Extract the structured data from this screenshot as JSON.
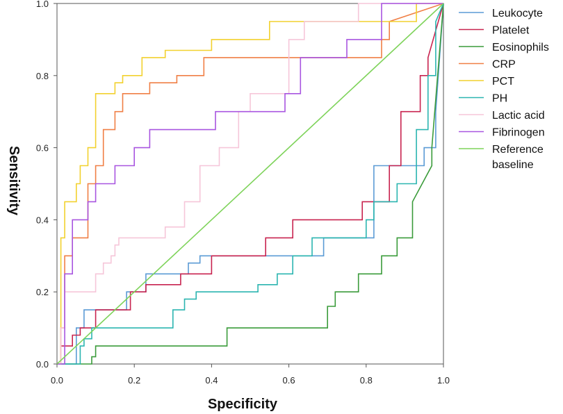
{
  "chart_data": {
    "type": "line",
    "title": "",
    "xlabel": "Specificity",
    "ylabel": "Sensitivity",
    "xlim": [
      0,
      1
    ],
    "ylim": [
      0,
      1
    ],
    "xticks": [
      "0.0",
      "0.2",
      "0.4",
      "0.6",
      "0.8",
      "1.0"
    ],
    "yticks": [
      "0.0",
      "0.2",
      "0.4",
      "0.6",
      "0.8",
      "1.0"
    ],
    "legend_position": "right",
    "grid": false,
    "series": [
      {
        "name": "Leukocyte",
        "color": "#5b9bd5",
        "x": [
          0,
          0.05,
          0.05,
          0.07,
          0.07,
          0.18,
          0.18,
          0.23,
          0.23,
          0.34,
          0.34,
          0.37,
          0.37,
          0.69,
          0.69,
          0.82,
          0.82,
          0.87,
          0.87,
          0.95,
          0.95,
          0.98,
          0.98,
          1.0
        ],
        "y": [
          0,
          0,
          0.1,
          0.1,
          0.15,
          0.15,
          0.2,
          0.2,
          0.25,
          0.25,
          0.28,
          0.28,
          0.3,
          0.3,
          0.35,
          0.35,
          0.55,
          0.55,
          0.55,
          0.55,
          0.6,
          0.6,
          0.7,
          1.0
        ]
      },
      {
        "name": "Platelet",
        "color": "#c8234f",
        "x": [
          0,
          0.01,
          0.01,
          0.04,
          0.04,
          0.06,
          0.06,
          0.1,
          0.1,
          0.19,
          0.19,
          0.23,
          0.23,
          0.32,
          0.32,
          0.4,
          0.4,
          0.54,
          0.54,
          0.61,
          0.61,
          0.79,
          0.79,
          0.86,
          0.86,
          0.89,
          0.89,
          0.94,
          0.94,
          0.96,
          0.96,
          1.0
        ],
        "y": [
          0,
          0,
          0.05,
          0.05,
          0.08,
          0.08,
          0.1,
          0.1,
          0.15,
          0.15,
          0.2,
          0.2,
          0.22,
          0.22,
          0.25,
          0.25,
          0.3,
          0.3,
          0.35,
          0.35,
          0.4,
          0.4,
          0.45,
          0.45,
          0.55,
          0.55,
          0.7,
          0.7,
          0.8,
          0.8,
          0.85,
          1.0
        ]
      },
      {
        "name": "Eosinophils",
        "color": "#3a9b3a",
        "x": [
          0,
          0.09,
          0.09,
          0.1,
          0.1,
          0.44,
          0.44,
          0.7,
          0.7,
          0.72,
          0.72,
          0.78,
          0.78,
          0.84,
          0.84,
          0.88,
          0.88,
          0.92,
          0.92,
          0.97,
          0.97,
          1.0
        ],
        "y": [
          0,
          0,
          0.02,
          0.02,
          0.05,
          0.05,
          0.1,
          0.1,
          0.16,
          0.16,
          0.2,
          0.2,
          0.25,
          0.25,
          0.3,
          0.3,
          0.35,
          0.35,
          0.45,
          0.55,
          0.6,
          1.0
        ]
      },
      {
        "name": "CRP",
        "color": "#f07f45",
        "x": [
          0,
          0.01,
          0.01,
          0.02,
          0.02,
          0.04,
          0.04,
          0.08,
          0.08,
          0.1,
          0.1,
          0.12,
          0.12,
          0.15,
          0.15,
          0.17,
          0.17,
          0.24,
          0.24,
          0.31,
          0.31,
          0.38,
          0.38,
          0.84,
          0.84,
          0.86,
          0.86,
          1.0
        ],
        "y": [
          0,
          0,
          0.1,
          0.1,
          0.3,
          0.3,
          0.35,
          0.35,
          0.5,
          0.5,
          0.55,
          0.55,
          0.65,
          0.65,
          0.7,
          0.7,
          0.75,
          0.75,
          0.78,
          0.78,
          0.8,
          0.8,
          0.85,
          0.85,
          0.9,
          0.9,
          0.95,
          1.0
        ]
      },
      {
        "name": "PCT",
        "color": "#f2d12e",
        "x": [
          0,
          0.01,
          0.01,
          0.02,
          0.02,
          0.05,
          0.05,
          0.06,
          0.06,
          0.08,
          0.08,
          0.1,
          0.1,
          0.15,
          0.15,
          0.17,
          0.17,
          0.22,
          0.22,
          0.28,
          0.28,
          0.4,
          0.4,
          0.55,
          0.55,
          0.93,
          0.93,
          1.0
        ],
        "y": [
          0,
          0,
          0.35,
          0.35,
          0.45,
          0.45,
          0.5,
          0.5,
          0.55,
          0.55,
          0.6,
          0.6,
          0.75,
          0.75,
          0.78,
          0.78,
          0.8,
          0.8,
          0.85,
          0.85,
          0.87,
          0.87,
          0.9,
          0.9,
          0.95,
          0.95,
          1.0,
          1.0
        ]
      },
      {
        "name": "PH",
        "color": "#2bb5b0",
        "x": [
          0,
          0.06,
          0.06,
          0.07,
          0.07,
          0.09,
          0.09,
          0.3,
          0.3,
          0.33,
          0.33,
          0.36,
          0.36,
          0.52,
          0.52,
          0.57,
          0.57,
          0.61,
          0.61,
          0.66,
          0.66,
          0.8,
          0.8,
          0.82,
          0.82,
          0.88,
          0.88,
          0.93,
          0.93,
          0.96,
          0.96,
          0.98,
          0.98,
          1.0
        ],
        "y": [
          0,
          0,
          0.05,
          0.05,
          0.07,
          0.07,
          0.1,
          0.1,
          0.15,
          0.15,
          0.18,
          0.18,
          0.2,
          0.2,
          0.22,
          0.22,
          0.25,
          0.25,
          0.3,
          0.3,
          0.35,
          0.35,
          0.4,
          0.4,
          0.45,
          0.45,
          0.5,
          0.5,
          0.65,
          0.65,
          0.8,
          0.8,
          0.95,
          1.0
        ]
      },
      {
        "name": "Lactic acid",
        "color": "#f6c6d9",
        "x": [
          0,
          0.01,
          0.01,
          0.02,
          0.02,
          0.1,
          0.1,
          0.12,
          0.12,
          0.14,
          0.14,
          0.15,
          0.15,
          0.16,
          0.16,
          0.28,
          0.28,
          0.33,
          0.33,
          0.37,
          0.37,
          0.42,
          0.42,
          0.47,
          0.47,
          0.5,
          0.5,
          0.6,
          0.6,
          0.64,
          0.64,
          0.78,
          0.78,
          0.83,
          0.83,
          1.0
        ],
        "y": [
          0,
          0,
          0.1,
          0.1,
          0.2,
          0.2,
          0.25,
          0.25,
          0.28,
          0.28,
          0.3,
          0.3,
          0.33,
          0.33,
          0.35,
          0.35,
          0.38,
          0.38,
          0.45,
          0.45,
          0.55,
          0.55,
          0.6,
          0.6,
          0.7,
          0.7,
          0.75,
          0.75,
          0.9,
          0.9,
          0.95,
          0.95,
          1.0,
          1.0,
          1.0,
          1.0
        ]
      },
      {
        "name": "Fibrinogen",
        "color": "#a855e0",
        "x": [
          0,
          0.02,
          0.02,
          0.04,
          0.04,
          0.08,
          0.08,
          0.1,
          0.1,
          0.15,
          0.15,
          0.2,
          0.2,
          0.24,
          0.24,
          0.41,
          0.41,
          0.48,
          0.48,
          0.59,
          0.59,
          0.63,
          0.63,
          0.65,
          0.65,
          0.75,
          0.75,
          0.84,
          0.84,
          0.85,
          0.85,
          1.0
        ],
        "y": [
          0,
          0,
          0.25,
          0.25,
          0.4,
          0.4,
          0.45,
          0.45,
          0.5,
          0.5,
          0.55,
          0.55,
          0.6,
          0.6,
          0.65,
          0.65,
          0.7,
          0.7,
          0.7,
          0.7,
          0.75,
          0.75,
          0.85,
          0.85,
          0.85,
          0.85,
          0.9,
          0.9,
          1.0,
          1.0,
          1.0,
          1.0
        ]
      },
      {
        "name": "Reference baseline",
        "color": "#7ed35a",
        "x": [
          0,
          1
        ],
        "y": [
          0,
          1
        ]
      }
    ]
  }
}
